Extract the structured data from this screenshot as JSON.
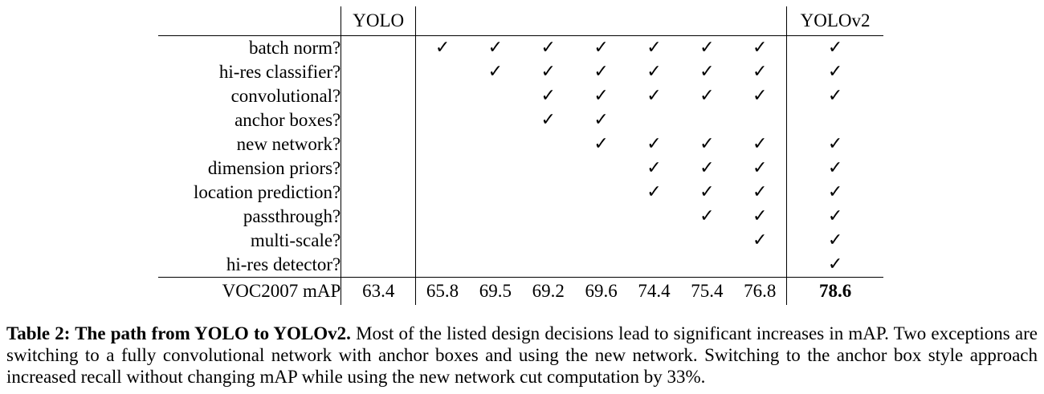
{
  "table": {
    "header": {
      "yolo": "YOLO",
      "yolov2": "YOLOv2"
    },
    "check_symbol": "✓",
    "rows": [
      {
        "label": "batch norm?",
        "yolo": "",
        "mid": [
          "✓",
          "✓",
          "✓",
          "✓",
          "✓",
          "✓",
          "✓"
        ],
        "v2": "✓"
      },
      {
        "label": "hi-res classifier?",
        "yolo": "",
        "mid": [
          "",
          "✓",
          "✓",
          "✓",
          "✓",
          "✓",
          "✓"
        ],
        "v2": "✓"
      },
      {
        "label": "convolutional?",
        "yolo": "",
        "mid": [
          "",
          "",
          "✓",
          "✓",
          "✓",
          "✓",
          "✓"
        ],
        "v2": "✓"
      },
      {
        "label": "anchor boxes?",
        "yolo": "",
        "mid": [
          "",
          "",
          "✓",
          "✓",
          "",
          "",
          ""
        ],
        "v2": ""
      },
      {
        "label": "new network?",
        "yolo": "",
        "mid": [
          "",
          "",
          "",
          "✓",
          "✓",
          "✓",
          "✓"
        ],
        "v2": "✓"
      },
      {
        "label": "dimension priors?",
        "yolo": "",
        "mid": [
          "",
          "",
          "",
          "",
          "✓",
          "✓",
          "✓"
        ],
        "v2": "✓"
      },
      {
        "label": "location prediction?",
        "yolo": "",
        "mid": [
          "",
          "",
          "",
          "",
          "✓",
          "✓",
          "✓"
        ],
        "v2": "✓"
      },
      {
        "label": "passthrough?",
        "yolo": "",
        "mid": [
          "",
          "",
          "",
          "",
          "",
          "✓",
          "✓"
        ],
        "v2": "✓"
      },
      {
        "label": "multi-scale?",
        "yolo": "",
        "mid": [
          "",
          "",
          "",
          "",
          "",
          "",
          "✓"
        ],
        "v2": "✓"
      },
      {
        "label": "hi-res detector?",
        "yolo": "",
        "mid": [
          "",
          "",
          "",
          "",
          "",
          "",
          ""
        ],
        "v2": "✓"
      }
    ],
    "map_row": {
      "label": "VOC2007 mAP",
      "yolo": "63.4",
      "mid": [
        "65.8",
        "69.5",
        "69.2",
        "69.6",
        "74.4",
        "75.4",
        "76.8"
      ],
      "v2": "78.6"
    }
  },
  "caption": {
    "lead": "Table 2: The path from YOLO to YOLOv2.",
    "body": " Most of the listed design decisions lead to significant increases in mAP. Two exceptions are switching to a fully convolutional network with anchor boxes and using the new network. Switching to the anchor box style approach increased recall without changing mAP while using the new network cut computation by 33%."
  }
}
